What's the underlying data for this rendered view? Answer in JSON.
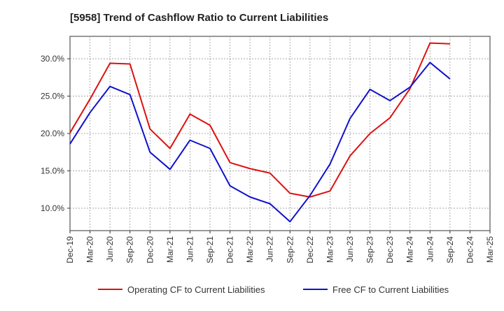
{
  "chart_data": {
    "type": "line",
    "title": "[5958]  Trend of Cashflow Ratio to Current Liabilities",
    "xlabel": "",
    "ylabel": "",
    "categories": [
      "Dec-19",
      "Mar-20",
      "Jun-20",
      "Sep-20",
      "Dec-20",
      "Mar-21",
      "Jun-21",
      "Sep-21",
      "Dec-21",
      "Mar-22",
      "Jun-22",
      "Sep-22",
      "Dec-22",
      "Mar-23",
      "Jun-23",
      "Sep-23",
      "Dec-23",
      "Mar-24",
      "Jun-24",
      "Sep-24",
      "Dec-24",
      "Mar-25"
    ],
    "y_ticks": [
      "10.0%",
      "15.0%",
      "20.0%",
      "25.0%",
      "30.0%"
    ],
    "ylim": [
      7.0,
      33.0
    ],
    "grid": true,
    "legend_position": "bottom",
    "series": [
      {
        "name": "Operating CF to Current Liabilities",
        "color": "#dd1111",
        "values": [
          20.1,
          24.6,
          29.4,
          29.3,
          20.6,
          18.0,
          22.6,
          21.1,
          16.1,
          15.3,
          14.7,
          12.0,
          11.5,
          12.3,
          17.0,
          20.0,
          22.1,
          26.0,
          32.1,
          32.0,
          null,
          null
        ]
      },
      {
        "name": "Free CF to Current Liabilities",
        "color": "#1111cc",
        "values": [
          18.6,
          22.8,
          26.3,
          25.2,
          17.5,
          15.2,
          19.1,
          18.0,
          13.0,
          11.5,
          10.6,
          8.2,
          11.7,
          15.9,
          22.0,
          25.9,
          24.4,
          26.2,
          29.5,
          27.3,
          null,
          null
        ]
      }
    ]
  }
}
